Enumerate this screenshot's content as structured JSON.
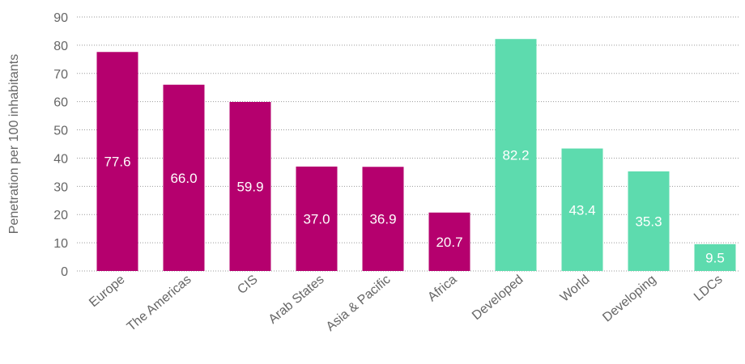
{
  "chart_data": {
    "type": "bar",
    "ylabel": "Penetration per 100 inhabitants",
    "ylim": [
      0,
      90
    ],
    "yticks": [
      0,
      10,
      20,
      30,
      40,
      50,
      60,
      70,
      80,
      90
    ],
    "grid": true,
    "categories": [
      "Europe",
      "The Americas",
      "CIS",
      "Arab States",
      "Asia & Pacific",
      "Africa",
      "Developed",
      "World",
      "Developing",
      "LDCs"
    ],
    "values": [
      77.6,
      66.0,
      59.9,
      37.0,
      36.9,
      20.7,
      82.2,
      43.4,
      35.3,
      9.5
    ],
    "value_labels": [
      "77.6",
      "66.0",
      "59.9",
      "37.0",
      "36.9",
      "20.7",
      "82.2",
      "43.4",
      "35.3",
      "9.5"
    ],
    "bar_colors": [
      "#b5006e",
      "#b5006e",
      "#b5006e",
      "#b5006e",
      "#b5006e",
      "#b5006e",
      "#5ddbae",
      "#5ddbae",
      "#5ddbae",
      "#5ddbae"
    ]
  }
}
